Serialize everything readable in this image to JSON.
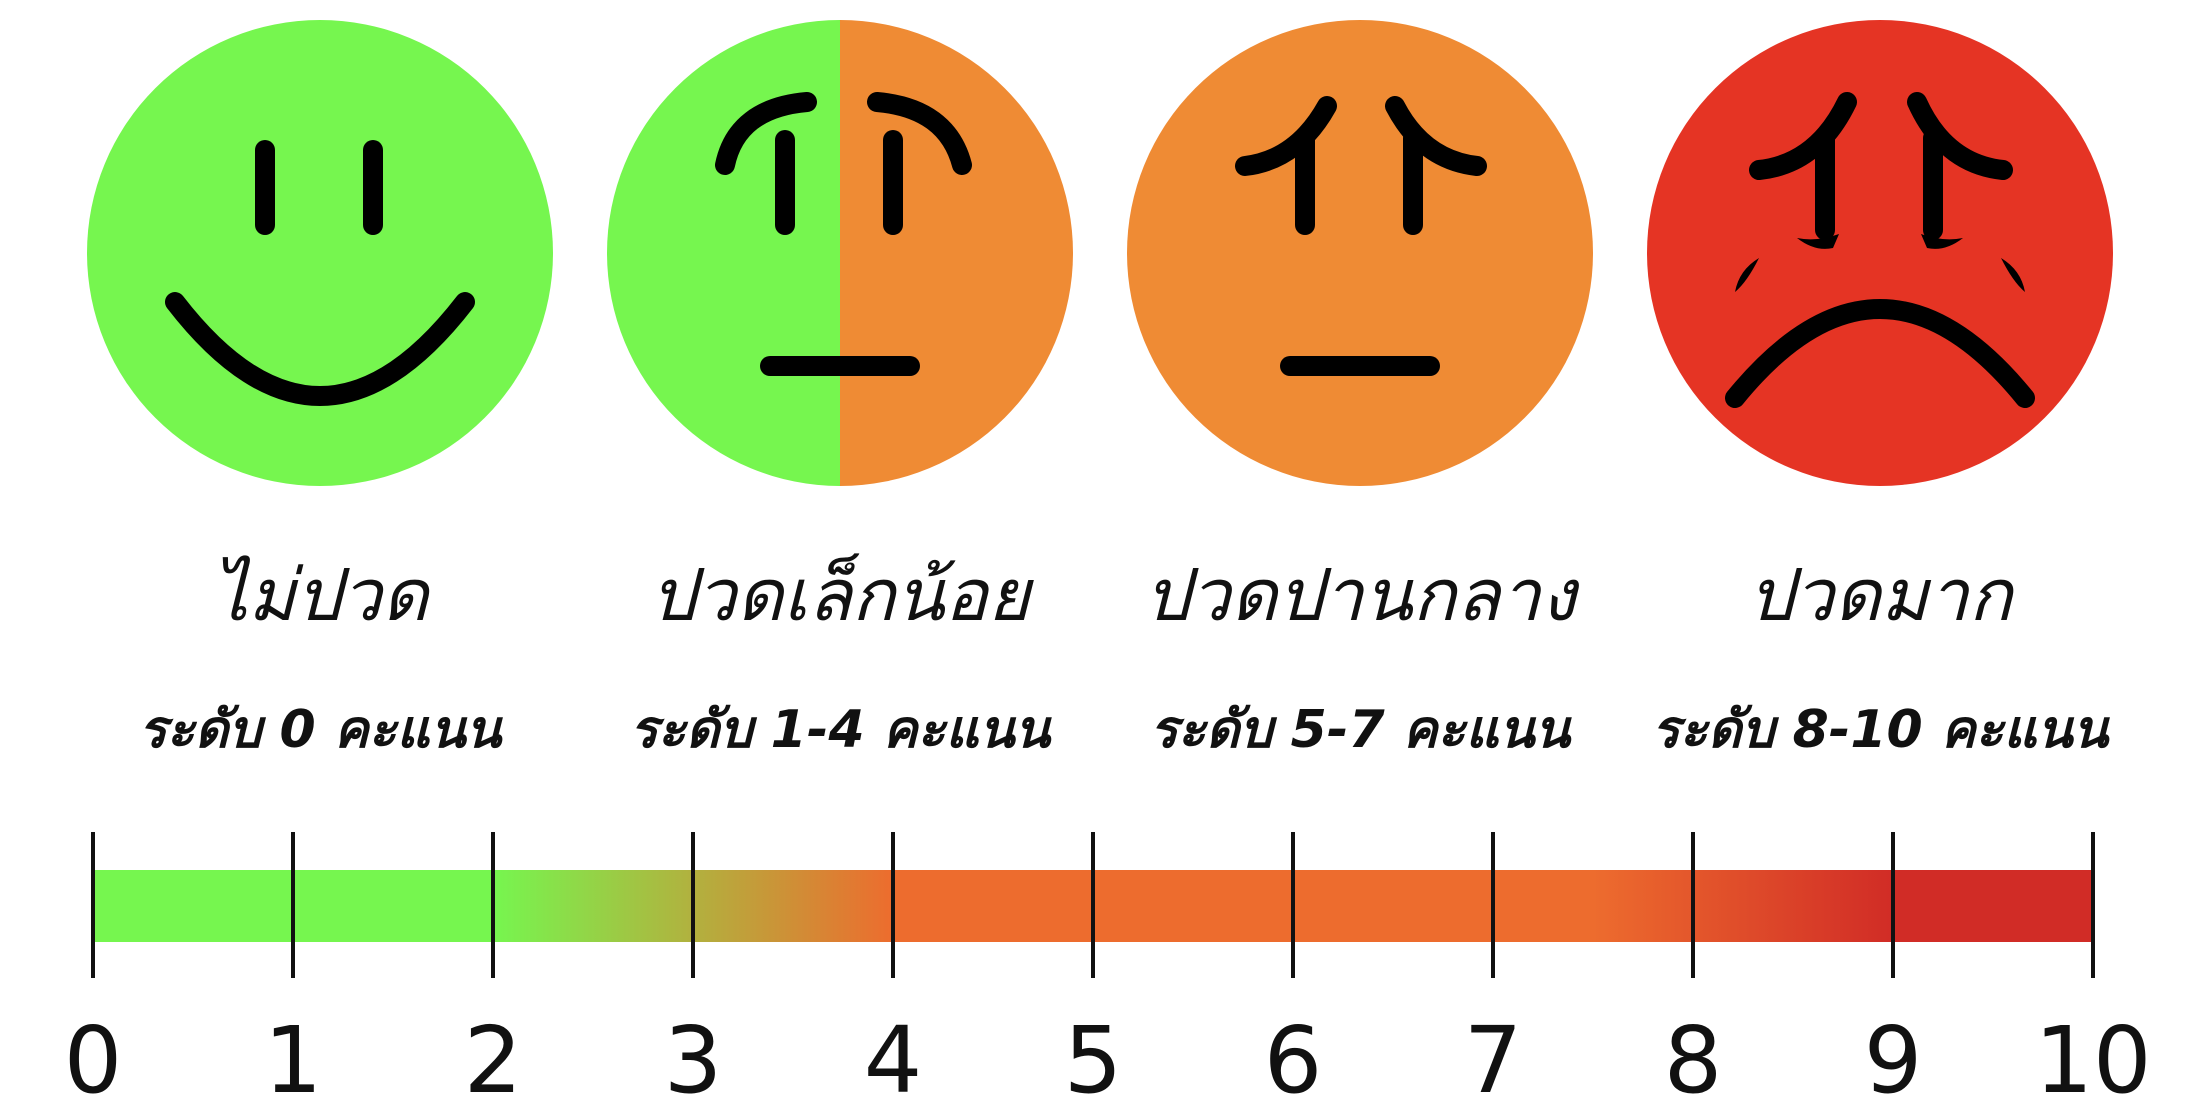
{
  "colors": {
    "green": "#76F64F",
    "orange": "#EF8B34",
    "red": "#E53424",
    "feature": "#000000",
    "bar_start": "#76F64F",
    "bar_mid": "#ED6C2E",
    "bar_end": "#D12C26"
  },
  "faces": [
    {
      "title": "ไม่ปวด",
      "range": "ระดับ 0 คะแนน",
      "icon": "smiling-face-icon",
      "color": "green"
    },
    {
      "title": "ปวดเล็กน้อย",
      "range": "ระดับ 1-4 คะแนน",
      "icon": "uneasy-face-icon",
      "color": "green-orange"
    },
    {
      "title": "ปวดปานกลาง",
      "range": "ระดับ 5-7 คะแนน",
      "icon": "worried-face-icon",
      "color": "orange"
    },
    {
      "title": "ปวดมาก",
      "range": "ระดับ 8-10 คะแนน",
      "icon": "crying-face-icon",
      "color": "red"
    }
  ],
  "scale": {
    "min": 0,
    "max": 10,
    "ticks": [
      "0",
      "1",
      "2",
      "3",
      "4",
      "5",
      "6",
      "7",
      "8",
      "9",
      "10"
    ]
  }
}
